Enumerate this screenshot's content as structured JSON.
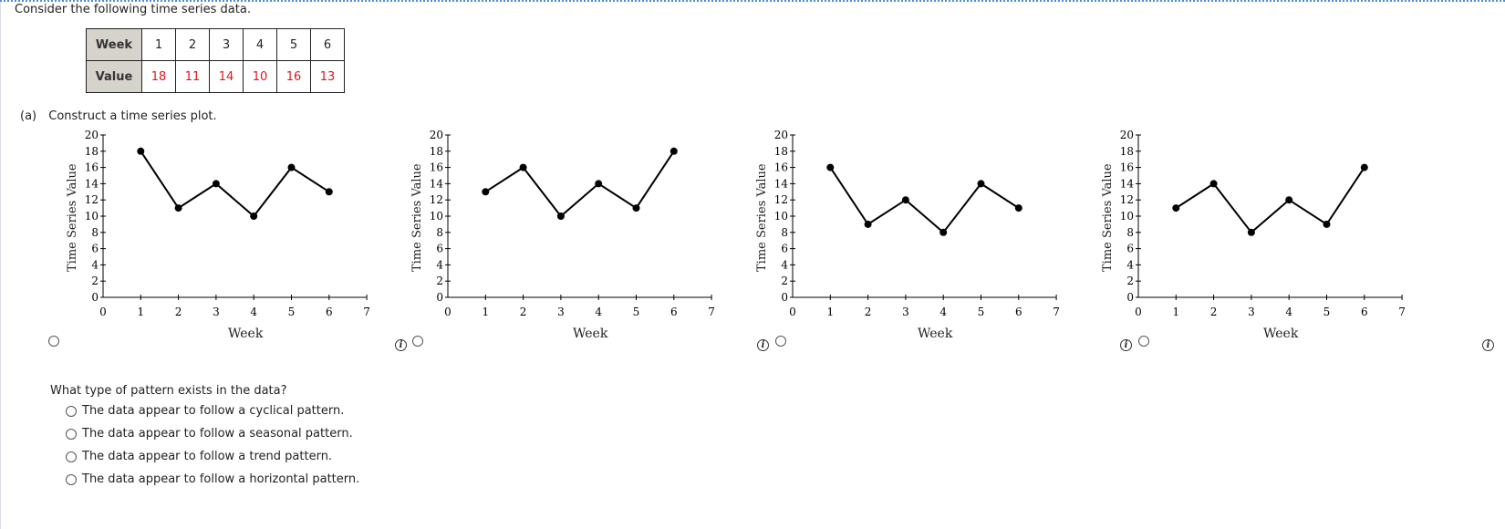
{
  "intro_text": "Consider the following time series data.",
  "table": {
    "row1_header": "Week",
    "row2_header": "Value",
    "weeks": [
      "1",
      "2",
      "3",
      "4",
      "5",
      "6"
    ],
    "values": [
      "18",
      "11",
      "14",
      "10",
      "16",
      "13"
    ]
  },
  "part_a": {
    "tag": "(a)",
    "prompt": "Construct a time series plot."
  },
  "info_glyph": "i",
  "chart_data": [
    {
      "type": "line",
      "x": [
        1,
        2,
        3,
        4,
        5,
        6
      ],
      "values": [
        18,
        11,
        14,
        10,
        16,
        13
      ],
      "xlabel": "Week",
      "ylabel": "Time Series Value",
      "xlim": [
        0,
        7
      ],
      "ylim": [
        0,
        20
      ],
      "xticks": [
        "0",
        "1",
        "2",
        "3",
        "4",
        "5",
        "6",
        "7"
      ],
      "yticks": [
        "0",
        "2",
        "4",
        "6",
        "8",
        "10",
        "12",
        "14",
        "16",
        "18",
        "20"
      ],
      "grid": false
    },
    {
      "type": "line",
      "x": [
        1,
        2,
        3,
        4,
        5,
        6
      ],
      "values": [
        13,
        16,
        10,
        14,
        11,
        18
      ],
      "xlabel": "Week",
      "ylabel": "Time Series Value",
      "xlim": [
        0,
        7
      ],
      "ylim": [
        0,
        20
      ],
      "xticks": [
        "0",
        "1",
        "2",
        "3",
        "4",
        "5",
        "6",
        "7"
      ],
      "yticks": [
        "0",
        "2",
        "4",
        "6",
        "8",
        "10",
        "12",
        "14",
        "16",
        "18",
        "20"
      ],
      "grid": false
    },
    {
      "type": "line",
      "x": [
        1,
        2,
        3,
        4,
        5,
        6
      ],
      "values": [
        16,
        9,
        12,
        8,
        14,
        11
      ],
      "xlabel": "Week",
      "ylabel": "Time Series Value",
      "xlim": [
        0,
        7
      ],
      "ylim": [
        0,
        20
      ],
      "xticks": [
        "0",
        "1",
        "2",
        "3",
        "4",
        "5",
        "6",
        "7"
      ],
      "yticks": [
        "0",
        "2",
        "4",
        "6",
        "8",
        "10",
        "12",
        "14",
        "16",
        "18",
        "20"
      ],
      "grid": false
    },
    {
      "type": "line",
      "x": [
        1,
        2,
        3,
        4,
        5,
        6
      ],
      "values": [
        11,
        14,
        8,
        12,
        9,
        16
      ],
      "xlabel": "Week",
      "ylabel": "Time Series Value",
      "xlim": [
        0,
        7
      ],
      "ylim": [
        0,
        20
      ],
      "xticks": [
        "0",
        "1",
        "2",
        "3",
        "4",
        "5",
        "6",
        "7"
      ],
      "yticks": [
        "0",
        "2",
        "4",
        "6",
        "8",
        "10",
        "12",
        "14",
        "16",
        "18",
        "20"
      ],
      "grid": false
    }
  ],
  "question": "What type of pattern exists in the data?",
  "options": [
    "The data appear to follow a cyclical pattern.",
    "The data appear to follow a seasonal pattern.",
    "The data appear to follow a trend pattern.",
    "The data appear to follow a horizontal pattern."
  ],
  "colors": {
    "value_text": "#e0141e",
    "header_bg": "#d6d3cc",
    "top_border": "#4a90d9"
  }
}
